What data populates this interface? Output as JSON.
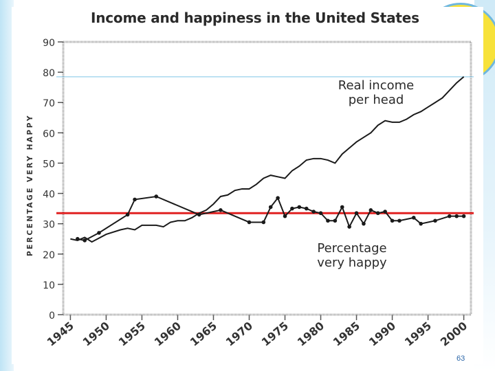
{
  "chart_data": {
    "type": "line",
    "title": "Income and happiness in the United States",
    "xlabel": "",
    "ylabel": "PERCENTAGE VERY HAPPY",
    "xlim": [
      1944,
      2001
    ],
    "ylim": [
      0,
      90
    ],
    "x_ticks": [
      "1945",
      "1950",
      "1955",
      "1960",
      "1965",
      "1970",
      "1975",
      "1980",
      "1985",
      "1990",
      "1995",
      "2000"
    ],
    "y_ticks": [
      "0",
      "10",
      "20",
      "30",
      "40",
      "50",
      "60",
      "70",
      "80",
      "90"
    ],
    "series": [
      {
        "name": "Real income per head",
        "label_lines": [
          "Real income",
          "per head"
        ],
        "color": "#1a1a1a",
        "x": [
          1945,
          1946,
          1947,
          1948,
          1950,
          1952,
          1953,
          1954,
          1955,
          1956,
          1957,
          1958,
          1959,
          1960,
          1961,
          1962,
          1963,
          1964,
          1965,
          1966,
          1967,
          1968,
          1969,
          1970,
          1971,
          1972,
          1973,
          1974,
          1975,
          1976,
          1977,
          1978,
          1979,
          1980,
          1981,
          1982,
          1983,
          1984,
          1985,
          1986,
          1987,
          1988,
          1989,
          1990,
          1991,
          1992,
          1993,
          1994,
          1995,
          1996,
          1997,
          1998,
          1999,
          2000
        ],
        "values": [
          25,
          24.5,
          25.5,
          24,
          26.5,
          28,
          28.5,
          28,
          29.5,
          29.5,
          29.5,
          29,
          30.5,
          31,
          31,
          32,
          33.5,
          34.5,
          36.5,
          39,
          39.5,
          41,
          41.5,
          41.5,
          43,
          45,
          46,
          45.5,
          45,
          47.5,
          49,
          51,
          51.5,
          51.5,
          51,
          50,
          53,
          55,
          57,
          58.5,
          60,
          62.5,
          64,
          63.5,
          63.5,
          64.5,
          66,
          67,
          68.5,
          70,
          71.5,
          74,
          76.5,
          78.5
        ]
      },
      {
        "name": "Percentage very happy",
        "label_lines": [
          "Percentage",
          "very happy"
        ],
        "color": "#1a1a1a",
        "x": [
          1946,
          1947,
          1949,
          1953,
          1954,
          1957,
          1963,
          1966,
          1970,
          1972,
          1973,
          1974,
          1975,
          1976,
          1977,
          1978,
          1979,
          1980,
          1981,
          1982,
          1983,
          1984,
          1985,
          1986,
          1987,
          1988,
          1989,
          1990,
          1991,
          1993,
          1994,
          1996,
          1998,
          1999,
          2000
        ],
        "values": [
          25,
          24.5,
          27,
          33,
          38,
          39,
          33,
          34.5,
          30.5,
          30.5,
          35.5,
          38.5,
          32.5,
          35,
          35.5,
          35,
          34,
          33.5,
          31,
          31,
          35.5,
          29,
          33.5,
          30,
          34.5,
          33.5,
          34,
          31,
          31,
          32,
          30,
          31,
          32.5,
          32.5,
          32.5
        ]
      }
    ],
    "annotations": [
      {
        "type": "hline",
        "y": 33.5,
        "color": "#e02020"
      },
      {
        "type": "hline",
        "y": 78.5,
        "color": "#a9d8ee"
      }
    ]
  },
  "slide": {
    "page_number": "63"
  }
}
